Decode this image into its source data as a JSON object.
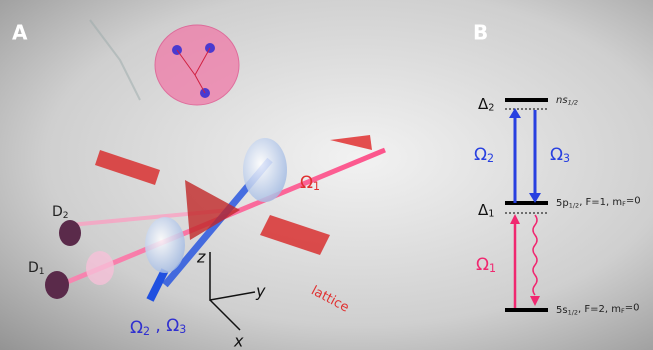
{
  "panel_a": {
    "label": "A",
    "detector_top": [
      "D",
      "2"
    ],
    "detector_bottom": [
      "D",
      "1"
    ],
    "omega_1": [
      "Ω",
      "1"
    ],
    "omega_23": [
      "Ω",
      "2",
      " , Ω",
      "3"
    ],
    "axis_z": "z",
    "axis_y": "y",
    "axis_x": "x",
    "lattice": "lattice"
  },
  "panel_b": {
    "label": "B",
    "delta_2": [
      "Δ",
      "2"
    ],
    "level_top": [
      "ns",
      "1/2"
    ],
    "omega_2": [
      "Ω",
      "2"
    ],
    "omega_3": [
      "Ω",
      "3"
    ],
    "delta_1": [
      "Δ",
      "1"
    ],
    "level_mid": [
      "5p",
      "1/2",
      ", F=1, m",
      "F",
      "=0"
    ],
    "omega_1": [
      "Ω",
      "1"
    ],
    "level_bottom": [
      "5s",
      "1/2",
      ", F=2, m",
      "F",
      "=0"
    ]
  }
}
